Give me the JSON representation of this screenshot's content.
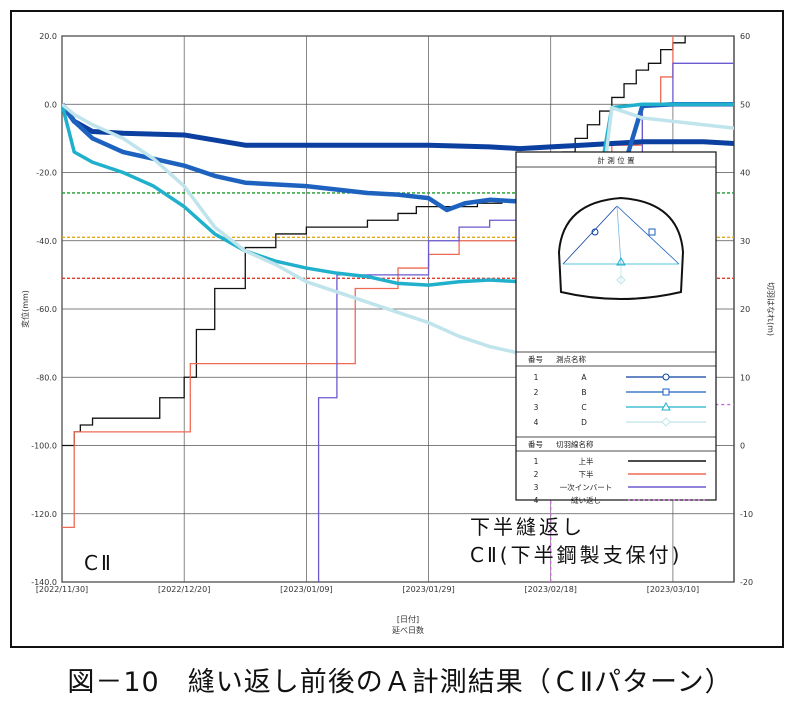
{
  "caption": "図－10　縫い返し前後のＡ計測結果（ＣⅡパターン）",
  "chart_data": {
    "type": "line",
    "xlabel_lines": [
      "[日付]",
      "延べ日数"
    ],
    "ylabel_left": "変位(mm)",
    "ylabel_right": "切羽はなれ(m)",
    "ylim_left": [
      -140,
      20
    ],
    "ylim_right": [
      -20,
      60
    ],
    "yticks_left": [
      "20.0",
      "0.0",
      "-20.0",
      "-40.0",
      "-60.0",
      "-80.0",
      "-100.0",
      "-120.0",
      "-140.0"
    ],
    "yticks_right": [
      "60",
      "50",
      "40",
      "30",
      "20",
      "10",
      "0",
      "-10",
      "-20"
    ],
    "xticks": [
      "[2022/11/30]",
      "[2022/12/20]",
      "[2023/01/09]",
      "[2023/01/29]",
      "[2023/02/18]",
      "[2023/03/10]"
    ],
    "x_range_days": [
      0,
      110
    ],
    "reference_lines": [
      {
        "y": -26,
        "color": "#1a9a2a"
      },
      {
        "y": -39,
        "color": "#e6a817"
      },
      {
        "y": -51,
        "color": "#e03a2a"
      }
    ],
    "annotations": {
      "zone_left": "CⅡ",
      "zone_right_line1": "下半縫返し",
      "zone_right_line2": "CⅡ(下半鋼製支保付)"
    },
    "measure_series": [
      {
        "no": "1",
        "name": "A",
        "color": "#0b3fa0",
        "x": [
          0,
          2,
          5,
          10,
          20,
          30,
          40,
          50,
          60,
          70,
          75,
          80,
          85,
          90,
          95,
          100,
          105,
          110,
          114
        ],
        "y": [
          0,
          -5,
          -8,
          -8.5,
          -9,
          -12,
          -12,
          -12,
          -12,
          -12.5,
          -13,
          -12.5,
          -12,
          -11.5,
          -11,
          -11,
          -11,
          -11.5,
          -12
        ]
      },
      {
        "no": "2",
        "name": "B",
        "color": "#1e62c0",
        "x": [
          0,
          2,
          5,
          10,
          15,
          20,
          25,
          30,
          40,
          50,
          55,
          60,
          63,
          66,
          70,
          75,
          80,
          85,
          90,
          95,
          100,
          105,
          110,
          114
        ],
        "y": [
          0,
          -5,
          -10,
          -14,
          -16,
          -18,
          -21,
          -23,
          -24,
          -26,
          -26.5,
          -27.5,
          -31,
          -29,
          -28,
          -28.5,
          -29,
          -29.5,
          -30,
          -0.5,
          0,
          0,
          0,
          0
        ]
      },
      {
        "no": "3",
        "name": "C",
        "color": "#20b0cc",
        "x": [
          0,
          2,
          5,
          10,
          15,
          20,
          25,
          30,
          35,
          40,
          45,
          50,
          55,
          60,
          65,
          70,
          75,
          80,
          85,
          90,
          95,
          100,
          105,
          110,
          114
        ],
        "y": [
          0,
          -14,
          -17,
          -20,
          -24,
          -30,
          -38,
          -43,
          -46,
          -48,
          -49.5,
          -50.5,
          -52.5,
          -53,
          -52,
          -51.5,
          -52,
          -52.5,
          -53,
          -1,
          0,
          0,
          0,
          0,
          0
        ]
      },
      {
        "no": "4",
        "name": "D",
        "color": "#bfe4ec",
        "x": [
          0,
          2,
          5,
          10,
          15,
          20,
          25,
          30,
          35,
          40,
          45,
          50,
          55,
          60,
          65,
          70,
          75,
          80,
          85,
          90,
          95,
          100,
          105,
          110,
          114
        ],
        "y": [
          0,
          -3,
          -6,
          -10,
          -16,
          -24,
          -36,
          -43,
          -47,
          -52,
          -55,
          -58,
          -61,
          -64,
          -68,
          -71,
          -73,
          -75,
          -76,
          -1,
          -4,
          -5,
          -6,
          -7,
          -7
        ]
      }
    ],
    "face_series": [
      {
        "no": "1",
        "name": "上半",
        "color": "#111111",
        "style": "solid",
        "x": [
          0,
          2,
          3,
          5,
          10,
          15,
          16,
          20,
          22,
          25,
          30,
          35,
          40,
          45,
          50,
          55,
          58,
          62,
          68,
          72,
          76,
          78,
          80,
          82,
          84,
          86,
          88,
          90,
          92,
          94,
          96,
          98,
          100,
          102
        ],
        "y": [
          0,
          2,
          3,
          4,
          4,
          4,
          7,
          10,
          17,
          23,
          29,
          31,
          32,
          32,
          33,
          34,
          35,
          35,
          35.5,
          36,
          38,
          40,
          42,
          43,
          45,
          47,
          49,
          51,
          53,
          55,
          56,
          58,
          59,
          60
        ]
      },
      {
        "no": "2",
        "name": "下半",
        "color": "#ef6a55",
        "style": "solid",
        "x": [
          0,
          1,
          2,
          15,
          20,
          21,
          30,
          40,
          43,
          45,
          48,
          50,
          55,
          60,
          65,
          70,
          75,
          80,
          85,
          90,
          95,
          98,
          100
        ],
        "y": [
          -12,
          -12,
          2,
          2,
          2,
          12,
          12,
          12,
          12,
          12,
          23,
          23,
          26,
          28,
          30,
          30,
          34,
          36,
          40,
          44,
          50,
          54,
          60
        ]
      },
      {
        "no": "3",
        "name": "一次インバート",
        "color": "#6a5ad0",
        "style": "solid",
        "x": [
          42,
          42,
          42,
          43,
          44,
          45,
          46,
          48,
          50,
          55,
          60,
          65,
          70,
          75,
          80,
          85,
          90,
          95,
          100,
          110,
          130
        ],
        "y": [
          -20,
          -18,
          7,
          7,
          7,
          25,
          25,
          25,
          25,
          25,
          30,
          32,
          33,
          33,
          34,
          35,
          37,
          50,
          56,
          56,
          56
        ]
      },
      {
        "no": "4",
        "name": "縫い返し",
        "color": "#c86ad8",
        "style": "dashed",
        "x": [
          80,
          80,
          130
        ],
        "y": [
          -20,
          6,
          6
        ]
      }
    ],
    "legend_box": {
      "title": "計 測 位 置",
      "measure_header": [
        "番号",
        "測点名称"
      ],
      "face_header": [
        "番号",
        "切羽線名称"
      ]
    }
  }
}
